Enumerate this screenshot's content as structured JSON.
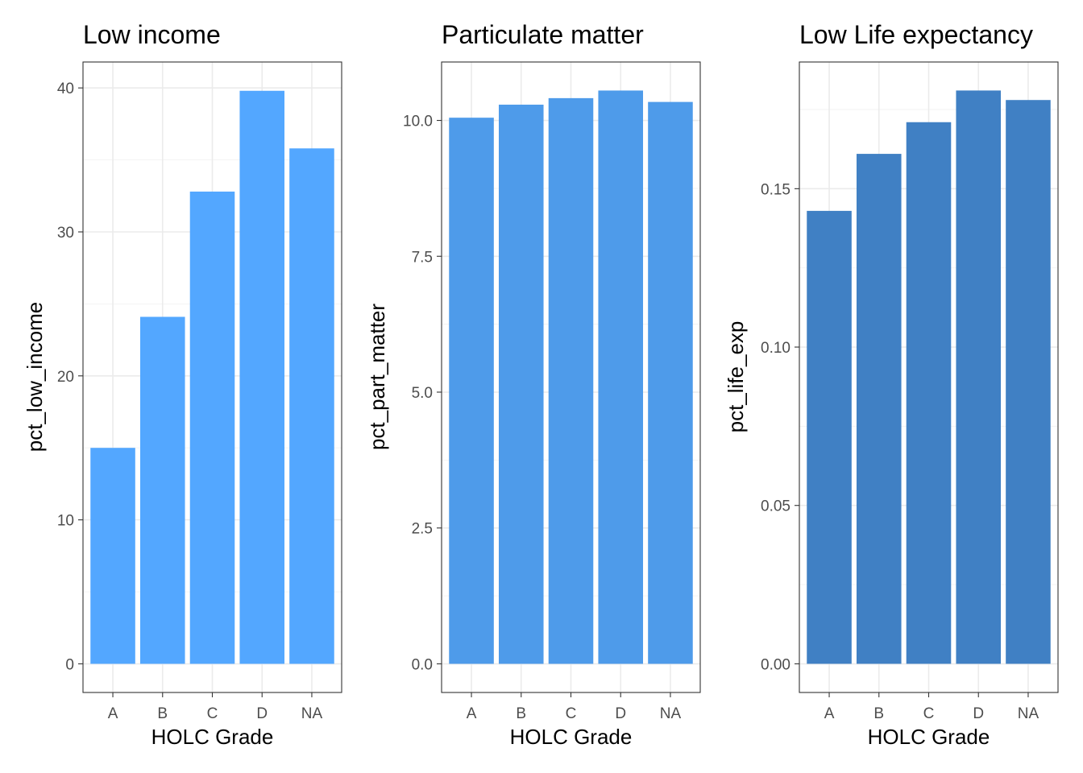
{
  "chart_data": [
    {
      "type": "bar",
      "title": "Low income",
      "xlabel": "HOLC Grade",
      "ylabel": "pct_low_income",
      "categories": [
        "A",
        "B",
        "C",
        "D",
        "NA"
      ],
      "values": [
        15.0,
        24.1,
        32.8,
        39.8,
        35.8
      ],
      "ylim": [
        -1.99,
        41.8
      ],
      "yticks": [
        0,
        10,
        20,
        30,
        40
      ],
      "ytick_labels": [
        "0",
        "10",
        "20",
        "30",
        "40"
      ],
      "bar_color": "#53A7FF",
      "grid": true
    },
    {
      "type": "bar",
      "title": "Particulate matter",
      "xlabel": "HOLC Grade",
      "ylabel": "pct_part_matter",
      "categories": [
        "A",
        "B",
        "C",
        "D",
        "NA"
      ],
      "values": [
        10.05,
        10.29,
        10.41,
        10.55,
        10.34
      ],
      "ylim": [
        -0.527,
        11.075
      ],
      "yticks": [
        0,
        2.5,
        5,
        7.5,
        10
      ],
      "ytick_labels": [
        "0.0",
        "2.5",
        "5.0",
        "7.5",
        "10.0"
      ],
      "bar_color": "#4E9BEA",
      "grid": true
    },
    {
      "type": "bar",
      "title": "Low Life expectancy",
      "xlabel": "HOLC Grade",
      "ylabel": "pct_life_exp",
      "categories": [
        "A",
        "B",
        "C",
        "D",
        "NA"
      ],
      "values": [
        0.143,
        0.161,
        0.171,
        0.181,
        0.178
      ],
      "ylim": [
        -0.00905,
        0.19
      ],
      "yticks": [
        0,
        0.05,
        0.1,
        0.15
      ],
      "ytick_labels": [
        "0.00",
        "0.05",
        "0.10",
        "0.15"
      ],
      "bar_color": "#4080C4",
      "grid": true
    }
  ]
}
